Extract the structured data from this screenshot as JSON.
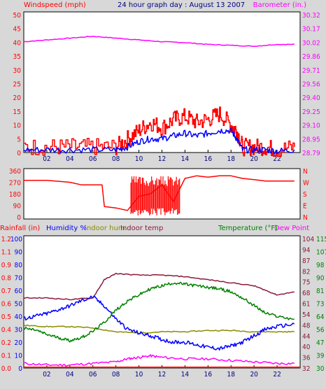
{
  "colors": {
    "background": "#d8d8d8",
    "plot_bg": "#ffffff",
    "wind_gust": "#ff0000",
    "wind_avg": "#0000ff",
    "barometer": "#ff00ff",
    "direction": "#ff0000",
    "rainfall": "#ff0000",
    "humidity": "#0000ff",
    "indoor_hum": "#8b8b00",
    "indoor_temp": "#8b1a3a",
    "temperature": "#008000",
    "dew_point": "#ff00ff",
    "title": "#000080"
  },
  "header": {
    "title": "24 hour graph day : August 13 2007",
    "left_label": "Windspeed (mph)",
    "right_label": "Barometer (in.)"
  },
  "bottom_legend": {
    "rainfall": "Rainfall (in)",
    "humidity": "Humidity %",
    "indoor_hum": "Indoor hum",
    "indoor_temp": "Indoor temp",
    "temperature": "Temperature (°F)",
    "dew_point": "Dew Point"
  },
  "chart_data": [
    {
      "type": "line",
      "x_ticks": [
        "02",
        "04",
        "06",
        "08",
        "10",
        "12",
        "14",
        "16",
        "18",
        "20",
        "22"
      ],
      "y_left_ticks": [
        "0",
        "5",
        "10",
        "15",
        "20",
        "25",
        "30",
        "35",
        "40",
        "45",
        "50"
      ],
      "y_right_ticks": [
        "28.79",
        "28.95",
        "29.10",
        "29.25",
        "29.40",
        "29.56",
        "29.71",
        "29.86",
        "30.02",
        "30.17",
        "30.32"
      ],
      "ylim_left": [
        0,
        50
      ],
      "ylim_right": [
        28.79,
        30.32
      ],
      "series": [
        {
          "name": "Windspeed (mph)",
          "color": "#ff0000",
          "x": [
            0,
            2,
            4,
            6,
            8,
            9,
            10,
            11,
            12,
            13,
            14,
            15,
            16,
            17,
            18,
            18.5,
            19,
            20,
            21,
            22,
            23.5
          ],
          "y": [
            2,
            2,
            2,
            2,
            2,
            5,
            8,
            11,
            9,
            12,
            13,
            11,
            12,
            14,
            10,
            8,
            2,
            2,
            2,
            1,
            2
          ]
        },
        {
          "name": "Windspeed (mph)",
          "color": "#0000ff",
          "x": [
            0,
            2,
            4,
            6,
            8,
            9,
            10,
            11,
            12,
            13,
            14,
            15,
            16,
            17,
            18,
            18.5,
            19,
            20,
            21,
            22,
            23.5
          ],
          "y": [
            1,
            1,
            1,
            1,
            1,
            2,
            4,
            5,
            5,
            6,
            7,
            6,
            7,
            8,
            8,
            5,
            1,
            1,
            1,
            0.5,
            1
          ]
        },
        {
          "name": "Barometer (in.)",
          "color": "#ff00ff",
          "x": [
            0,
            2,
            4,
            6,
            8,
            10,
            12,
            14,
            16,
            18,
            20,
            22,
            23.5
          ],
          "y": [
            30.02,
            30.04,
            30.06,
            30.08,
            30.06,
            30.04,
            30.02,
            30.01,
            29.99,
            29.98,
            29.97,
            29.99,
            29.99
          ]
        }
      ]
    },
    {
      "type": "line",
      "x_ticks": [
        "02",
        "04",
        "06",
        "08",
        "10",
        "12",
        "14",
        "16",
        "18",
        "20",
        "22"
      ],
      "y_left_ticks": [
        "0",
        "90",
        "180",
        "270",
        "360"
      ],
      "y_right_ticks": [
        "N",
        "E",
        "S",
        "W",
        "N"
      ],
      "ylim_left": [
        0,
        360
      ],
      "series": [
        {
          "name": "Wind direction",
          "color": "#ff0000",
          "x": [
            0,
            2,
            4,
            5,
            6,
            6.8,
            7,
            8,
            9,
            10,
            11,
            12,
            13,
            14,
            15,
            16,
            17,
            18,
            19,
            20,
            21,
            22,
            23.5
          ],
          "y": [
            285,
            285,
            270,
            250,
            250,
            250,
            80,
            70,
            50,
            160,
            180,
            250,
            120,
            300,
            320,
            310,
            320,
            320,
            300,
            290,
            280,
            280,
            280
          ]
        }
      ]
    },
    {
      "type": "line",
      "x_ticks": [
        "02",
        "04",
        "06",
        "08",
        "10",
        "12",
        "14",
        "16",
        "18",
        "20",
        "22"
      ],
      "y_left_humidity_ticks": [
        "0",
        "10",
        "20",
        "30",
        "40",
        "50",
        "60",
        "70",
        "80",
        "90",
        "100"
      ],
      "y_left_rain_ticks": [
        "0.0",
        "0.1",
        "0.2",
        "0.4",
        "0.5",
        "0.6",
        "0.7",
        "0.8",
        "0.9",
        "1.1",
        "1.2"
      ],
      "y_right_temp_ticks": [
        "30",
        "39",
        "47",
        "56",
        "64",
        "73",
        "81",
        "90",
        "98",
        "107",
        "115"
      ],
      "y_right_dew_ticks": [
        "32",
        "36",
        "40",
        "44",
        "48",
        "54",
        "61",
        "68",
        "75",
        "82",
        "87",
        "94",
        "104"
      ],
      "ylim_humidity": [
        0,
        100
      ],
      "ylim_temp": [
        30,
        115
      ],
      "series": [
        {
          "name": "Humidity %",
          "color": "#0000ff",
          "x": [
            0,
            1,
            2,
            3,
            4,
            5,
            6,
            7,
            8,
            9,
            10,
            11,
            12,
            13,
            14,
            15,
            16,
            17,
            18,
            19,
            20,
            21,
            22,
            23.5
          ],
          "y": [
            38,
            40,
            42,
            45,
            48,
            52,
            55,
            48,
            38,
            30,
            27,
            25,
            22,
            20,
            20,
            18,
            16,
            15,
            17,
            20,
            25,
            30,
            32,
            34
          ]
        },
        {
          "name": "Indoor hum",
          "color": "#8b8b00",
          "x": [
            0,
            2,
            4,
            6,
            8,
            10,
            12,
            14,
            16,
            18,
            20,
            22,
            23.5
          ],
          "y": [
            33,
            32,
            32,
            31,
            28,
            27,
            28,
            28,
            29,
            29,
            28,
            28,
            28
          ]
        },
        {
          "name": "Indoor temp",
          "color": "#8b1a3a",
          "x": [
            0,
            2,
            4,
            6,
            7,
            8,
            10,
            12,
            14,
            16,
            18,
            20,
            21,
            22,
            23.5
          ],
          "y": [
            76,
            76,
            75,
            76,
            88,
            92,
            91,
            91,
            90,
            88,
            86,
            84,
            81,
            78,
            80
          ]
        },
        {
          "name": "Temperature (°F)",
          "color": "#008000",
          "x": [
            0,
            1,
            2,
            3,
            4,
            5,
            6,
            7,
            8,
            9,
            10,
            11,
            12,
            13,
            14,
            15,
            16,
            17,
            18,
            19,
            20,
            21,
            22,
            23.5
          ],
          "y": [
            56,
            55,
            52,
            50,
            48,
            50,
            54,
            60,
            68,
            74,
            78,
            82,
            84,
            86,
            85,
            84,
            83,
            82,
            80,
            76,
            71,
            66,
            64,
            62
          ]
        },
        {
          "name": "Dew Point",
          "color": "#ff00ff",
          "x": [
            0,
            2,
            4,
            6,
            8,
            9,
            10,
            11,
            12,
            14,
            16,
            18,
            20,
            22,
            23.5
          ],
          "y": [
            33,
            32,
            32,
            33,
            34,
            36,
            37,
            38,
            37,
            36,
            36,
            35,
            34,
            33,
            33
          ]
        }
      ]
    }
  ]
}
